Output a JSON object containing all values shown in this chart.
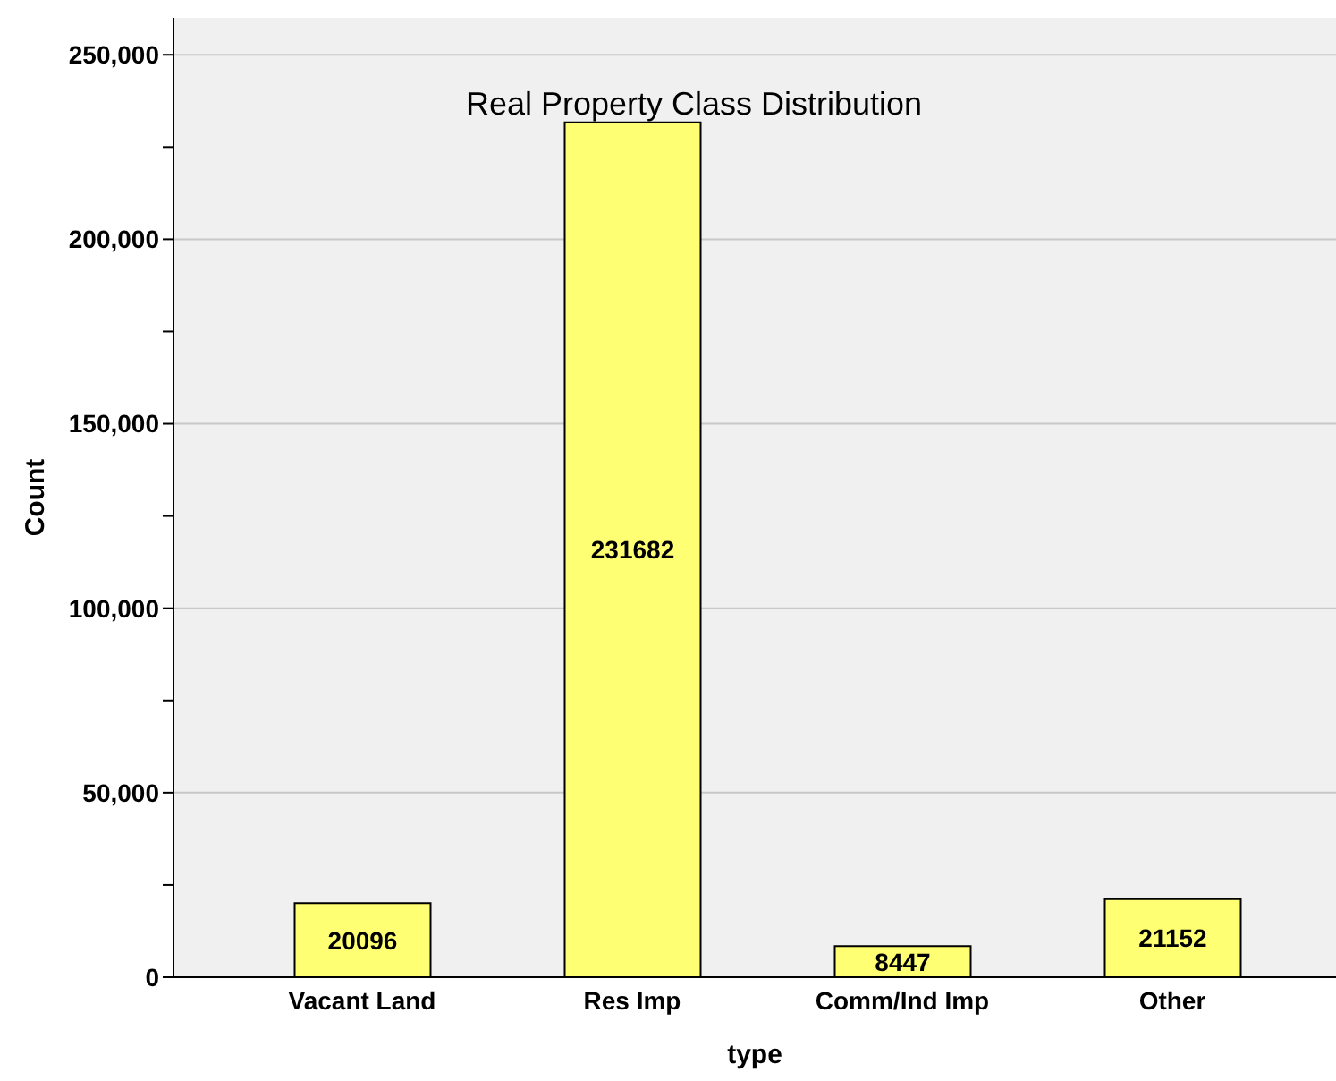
{
  "chart_data": {
    "type": "bar",
    "title": "Real Property Class Distribution",
    "xlabel": "type",
    "ylabel": "Count",
    "categories": [
      "Vacant Land",
      "Res Imp",
      "Comm/Ind Imp",
      "Other"
    ],
    "values": [
      20096,
      231682,
      8447,
      21152
    ],
    "color": "#ffff73",
    "ylim": [
      0,
      260000
    ],
    "yticks": [
      0,
      {
        "value": 25000,
        "label": null
      },
      {
        "value": 50000,
        "label": "50,000"
      },
      {
        "value": 75000,
        "label": null
      },
      {
        "value": 100000,
        "label": "100,000"
      },
      {
        "value": 125000,
        "label": null
      },
      {
        "value": 150000,
        "label": "150,000"
      },
      {
        "value": 175000,
        "label": null
      },
      {
        "value": 200000,
        "label": "200,000"
      },
      {
        "value": 225000,
        "label": null
      },
      {
        "value": 250000,
        "label": "250,000"
      }
    ],
    "grid": "y",
    "data_labels": true
  }
}
